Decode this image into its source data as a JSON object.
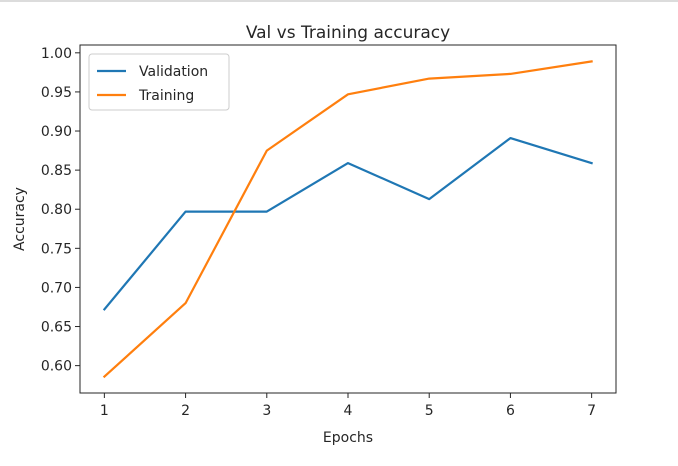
{
  "chart_data": {
    "type": "line",
    "title": "Val vs Training accuracy",
    "xlabel": "Epochs",
    "ylabel": "Accuracy",
    "x": [
      1,
      2,
      3,
      4,
      5,
      6,
      7
    ],
    "xlim": [
      0.7,
      7.3
    ],
    "ylim": [
      0.565,
      1.01
    ],
    "xticks": [
      "1",
      "2",
      "3",
      "4",
      "5",
      "6",
      "7"
    ],
    "yticks": [
      "0.60",
      "0.65",
      "0.70",
      "0.75",
      "0.80",
      "0.85",
      "0.90",
      "0.95",
      "1.00"
    ],
    "grid": false,
    "legend_position": "upper-left",
    "series": [
      {
        "name": "Validation",
        "color": "#1f77b4",
        "values": [
          0.672,
          0.797,
          0.797,
          0.859,
          0.813,
          0.891,
          0.859
        ]
      },
      {
        "name": "Training",
        "color": "#ff7f0e",
        "values": [
          0.586,
          0.68,
          0.875,
          0.947,
          0.967,
          0.973,
          0.989
        ]
      }
    ]
  }
}
